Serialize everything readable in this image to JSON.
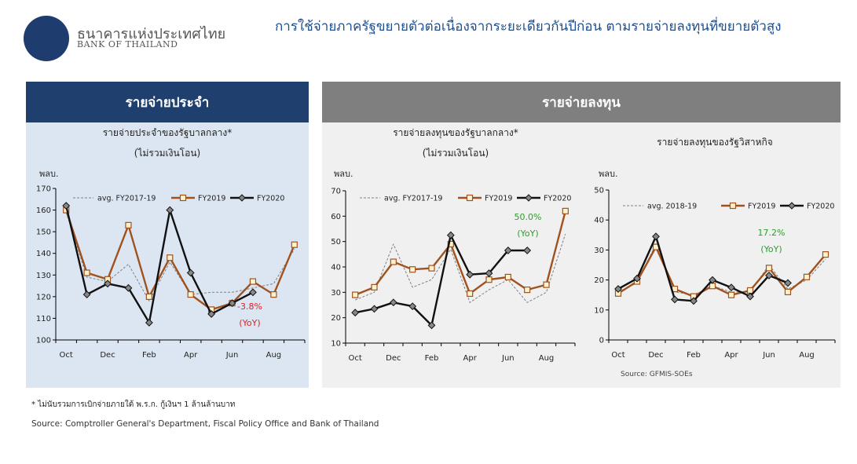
{
  "header": {
    "bank_name_th": "ธนาคารแห่งประเทศไทย",
    "bank_name_en": "BANK OF THAILAND",
    "headline": "การใช้จ่ายภาครัฐขยายตัวต่อเนื่องจากระยะเดียวกันปีก่อน ตามรายจ่ายลงทุนที่ขยายตัวสูง"
  },
  "sections": {
    "left_title": "รายจ่ายประจำ",
    "right_title": "รายจ่ายลงทุน"
  },
  "colors": {
    "left_bar": "#1f3f6e",
    "left_panel": "#dce6f2",
    "right_bar": "#7f7f7f",
    "right_panel": "#f0f0f0",
    "avg": "#808080",
    "fy2019": "#a0521e",
    "fy2020": "#111111",
    "yoy_negative": "#e02020",
    "yoy_positive": "#2aa02a"
  },
  "chart_data": [
    {
      "type": "line",
      "title": "รายจ่ายประจำของรัฐบาลกลาง*",
      "subtitle": "(ไม่รวมเงินโอน)",
      "ylabel": "พลบ.",
      "ylim": [
        100,
        170
      ],
      "yticks": [
        100,
        110,
        120,
        130,
        140,
        150,
        160,
        170
      ],
      "categories": [
        "Oct",
        "Nov",
        "Dec",
        "Jan",
        "Feb",
        "Mar",
        "Apr",
        "May",
        "Jun",
        "Jul",
        "Aug",
        "Sep"
      ],
      "x_tick_labels": [
        "Oct",
        "",
        "Dec",
        "",
        "Feb",
        "",
        "Apr",
        "",
        "Jun",
        "",
        "Aug",
        ""
      ],
      "legend": [
        "avg. FY2017-19",
        "FY2019",
        "FY2020"
      ],
      "series": [
        {
          "name": "avg. FY2017-19",
          "style": "dashed",
          "values": [
            159,
            129,
            127,
            135,
            118,
            136,
            121,
            122,
            122,
            124,
            126,
            142
          ]
        },
        {
          "name": "FY2019",
          "style": "marker-square",
          "values": [
            160,
            131,
            128,
            153,
            120,
            138,
            121,
            114,
            117,
            127,
            121,
            144
          ]
        },
        {
          "name": "FY2020",
          "style": "marker-diamond",
          "values": [
            162,
            121,
            126,
            124,
            108,
            160,
            131,
            112,
            117,
            122,
            null,
            null
          ]
        }
      ],
      "annotation": {
        "value": "-3.8%",
        "label": "(YoY)",
        "tone": "negative"
      }
    },
    {
      "type": "line",
      "title": "รายจ่ายลงทุนของรัฐบาลกลาง*",
      "subtitle": "(ไม่รวมเงินโอน)",
      "ylabel": "พลบ.",
      "ylim": [
        10,
        70
      ],
      "yticks": [
        10,
        20,
        30,
        40,
        50,
        60,
        70
      ],
      "categories": [
        "Oct",
        "Nov",
        "Dec",
        "Jan",
        "Feb",
        "Mar",
        "Apr",
        "May",
        "Jun",
        "Jul",
        "Aug",
        "Sep"
      ],
      "x_tick_labels": [
        "Oct",
        "",
        "Dec",
        "",
        "Feb",
        "",
        "Apr",
        "",
        "Jun",
        "",
        "Aug",
        ""
      ],
      "legend": [
        "avg. FY2017-19",
        "FY2019",
        "FY2020"
      ],
      "series": [
        {
          "name": "avg. FY2017-19",
          "style": "dashed",
          "values": [
            27,
            30,
            49,
            32,
            35,
            47,
            26,
            31,
            35,
            26,
            30,
            53
          ]
        },
        {
          "name": "FY2019",
          "style": "marker-square",
          "values": [
            29,
            32,
            42,
            39,
            39.5,
            49,
            29.5,
            35,
            36,
            31,
            33,
            62
          ]
        },
        {
          "name": "FY2020",
          "style": "marker-diamond",
          "values": [
            22,
            23.5,
            26,
            24.5,
            17,
            52.5,
            37,
            37.5,
            46.5,
            46.5,
            null,
            null
          ]
        }
      ],
      "annotation": {
        "value": "50.0%",
        "label": "(YoY)",
        "tone": "positive"
      }
    },
    {
      "type": "line",
      "title": "รายจ่ายลงทุนของรัฐวิสาหกิจ",
      "ylabel": "พลบ.",
      "ylim": [
        0,
        50
      ],
      "yticks": [
        0,
        10,
        20,
        30,
        40,
        50
      ],
      "categories": [
        "Oct",
        "Nov",
        "Dec",
        "Jan",
        "Feb",
        "Mar",
        "Apr",
        "May",
        "Jun",
        "Jul",
        "Aug",
        "Sep"
      ],
      "x_tick_labels": [
        "Oct",
        "",
        "Dec",
        "",
        "Feb",
        "",
        "Apr",
        "",
        "Jun",
        "",
        "Aug",
        ""
      ],
      "legend": [
        "avg. 2018-19",
        "FY2019",
        "FY2020"
      ],
      "series": [
        {
          "name": "avg. 2018-19",
          "style": "dashed",
          "values": [
            16,
            19,
            32,
            16,
            15,
            18,
            16,
            16,
            25,
            17,
            20,
            27
          ]
        },
        {
          "name": "FY2019",
          "style": "marker-square",
          "values": [
            15.5,
            19.5,
            31,
            17,
            14.5,
            18,
            15,
            16.5,
            24,
            16,
            21,
            28.5
          ]
        },
        {
          "name": "FY2020",
          "style": "marker-diamond",
          "values": [
            17,
            20.5,
            34.5,
            13.5,
            13,
            20,
            17.5,
            14.5,
            21.5,
            19,
            null,
            null
          ]
        }
      ],
      "annotation": {
        "value": "17.2%",
        "label": "(YoY)",
        "tone": "positive"
      }
    }
  ],
  "footnote": "* ไม่นับรวมการเบิกจ่ายภายใต้ พ.ร.ก. กู้เงินฯ 1 ล้านล้านบาท",
  "source_main": "Source: Comptroller General's Department, Fiscal Policy Office and Bank of Thailand",
  "source_soe": "Source: GFMIS-SOEs"
}
